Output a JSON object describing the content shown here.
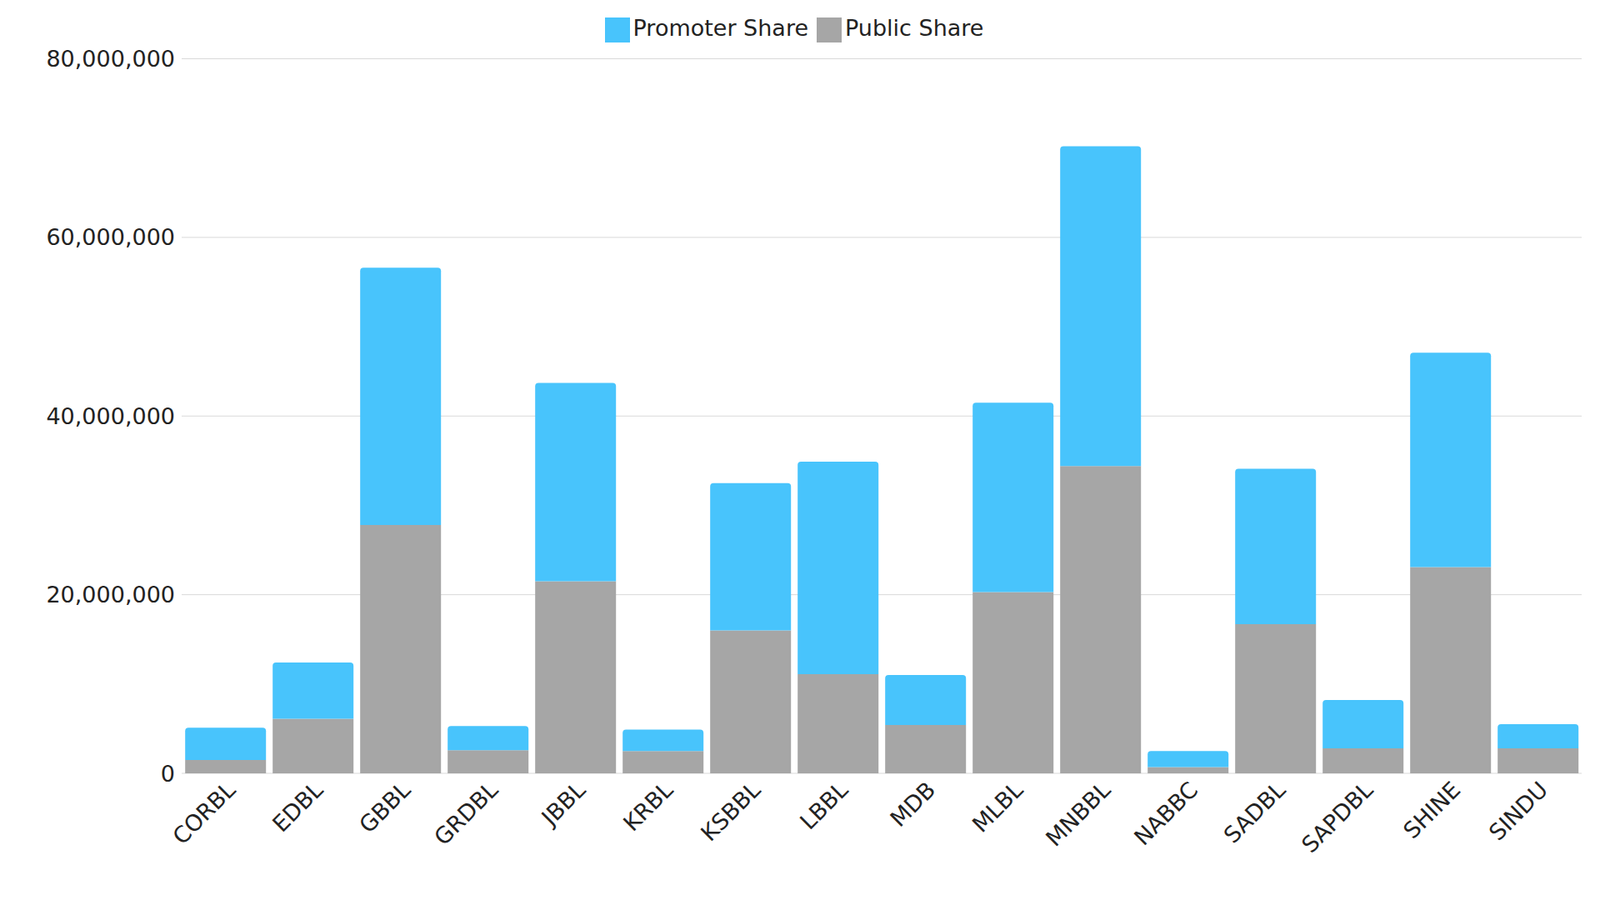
{
  "chart_data": {
    "type": "bar",
    "categories": [
      "CORBL",
      "EDBL",
      "GBBL",
      "GRDBL",
      "JBBL",
      "KRBL",
      "KSBBL",
      "LBBL",
      "MDB",
      "MLBL",
      "MNBBL",
      "NABBC",
      "SADBL",
      "SAPDBL",
      "SHINE",
      "SINDU"
    ],
    "series": [
      {
        "name": "Public Share",
        "color": "#a6a6a6",
        "values": [
          1500000,
          6100000,
          27800000,
          2600000,
          21500000,
          2500000,
          16000000,
          11100000,
          5400000,
          20300000,
          34400000,
          700000,
          16700000,
          2800000,
          23100000,
          2800000
        ]
      },
      {
        "name": "Promoter Share",
        "color": "#48c4fc",
        "values": [
          3600000,
          6300000,
          28800000,
          2700000,
          22200000,
          2400000,
          16500000,
          23800000,
          5600000,
          21200000,
          35800000,
          1800000,
          17400000,
          5400000,
          24000000,
          2700000
        ]
      }
    ],
    "ylim": [
      0,
      80000000
    ],
    "yticks": [
      0,
      {
        "value": 20000000,
        "label": "20,000,000"
      },
      {
        "value": 40000000,
        "label": "40,000,000"
      },
      {
        "value": 60000000,
        "label": "60,000,000"
      },
      {
        "value": 80000000,
        "label": "80,000,000"
      }
    ],
    "grid": true,
    "stacked": true,
    "legend": "top"
  }
}
